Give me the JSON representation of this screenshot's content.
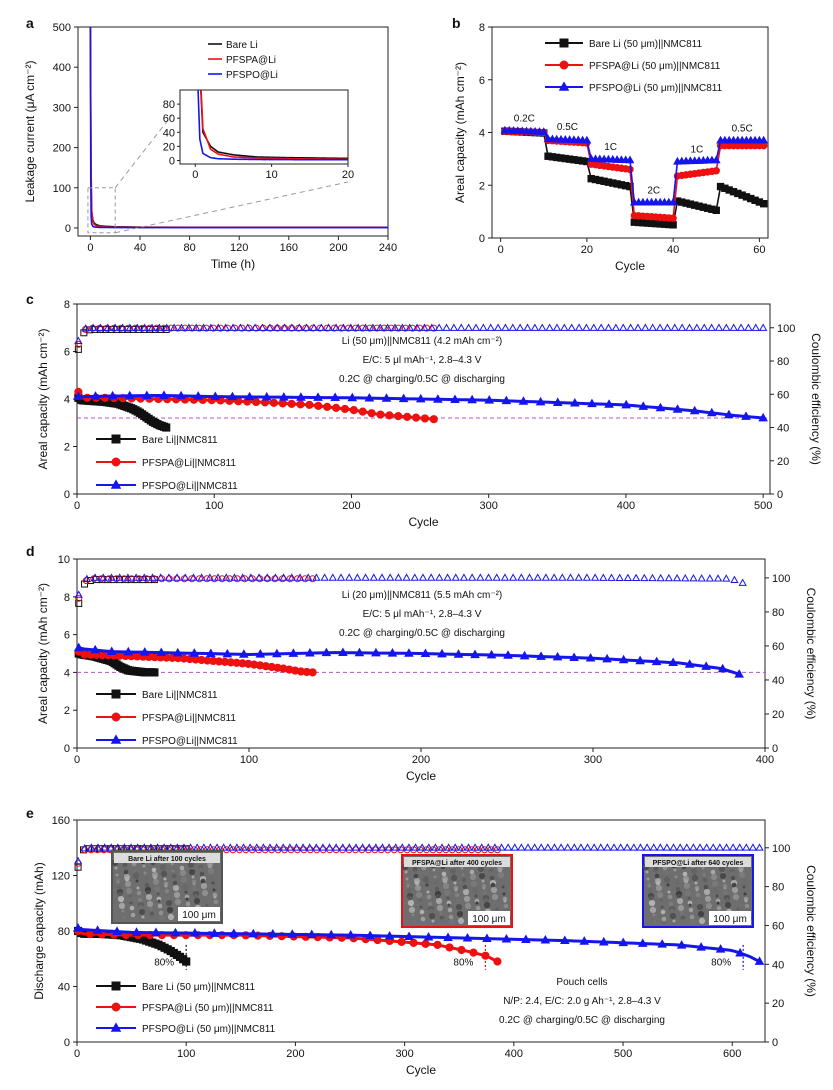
{
  "figure_title": "",
  "colors": {
    "bare": "#111111",
    "pfspa": "#ee1111",
    "pfspo": "#1515ee",
    "threshold": "#b455c8",
    "dashed_zoom": "#9a9a9a"
  },
  "chart_data": [
    {
      "panel": "a",
      "type": "line",
      "xlabel": "Time (h)",
      "ylabel": "Leakage current (μA cm⁻²)",
      "xlim": [
        -10,
        240
      ],
      "ylim": [
        -20,
        500
      ],
      "xticks": [
        0,
        40,
        80,
        120,
        160,
        200,
        240
      ],
      "yticks": [
        0,
        100,
        200,
        300,
        400,
        500
      ],
      "legend": [
        "Bare Li",
        "PFSPA@Li",
        "PFSPO@Li"
      ],
      "series": [
        {
          "name": "Bare Li",
          "x": [
            0,
            0.5,
            1,
            2,
            3,
            5,
            8,
            12,
            20,
            40,
            80,
            160,
            240
          ],
          "y": [
            500,
            150,
            40,
            20,
            12,
            8,
            5,
            4,
            3,
            2,
            1.8,
            1.5,
            1.5
          ]
        },
        {
          "name": "PFSPA@Li",
          "x": [
            0,
            0.5,
            1,
            2,
            3,
            5,
            8,
            12,
            20,
            40,
            80,
            160,
            240
          ],
          "y": [
            500,
            160,
            45,
            16,
            9,
            5,
            3.5,
            2.5,
            1.8,
            1.5,
            1.3,
            1.2,
            1.2
          ]
        },
        {
          "name": "PFSPO@Li",
          "x": [
            0,
            0.3,
            0.6,
            1,
            2,
            3,
            5,
            8,
            12,
            20,
            80,
            160,
            240
          ],
          "y": [
            500,
            120,
            30,
            10,
            4,
            2.5,
            1.8,
            1.4,
            1.2,
            1.1,
            1,
            1,
            1
          ]
        }
      ],
      "inset": {
        "xlim": [
          -2,
          20
        ],
        "ylim": [
          -5,
          100
        ],
        "xticks": [
          0,
          10,
          20
        ],
        "yticks": [
          0,
          20,
          40,
          60,
          80
        ]
      }
    },
    {
      "panel": "b",
      "type": "line",
      "xlabel": "Cycle",
      "ylabel": "Areal capacity (mAh cm⁻²)",
      "xlim": [
        -2,
        62
      ],
      "ylim": [
        0,
        8
      ],
      "xticks": [
        0,
        20,
        40,
        60
      ],
      "yticks": [
        0,
        2,
        4,
        6,
        8
      ],
      "legend": [
        "Bare Li (50 μm)||NMC811",
        "PFSPA@Li (50 μm)||NMC811",
        "PFSPO@Li (50 μm)||NMC811"
      ],
      "rate_labels": [
        "0.2C",
        "0.5C",
        "1C",
        "2C",
        "1C",
        "0.5C"
      ],
      "steps": [
        {
          "x0": 1,
          "x1": 10,
          "bare": [
            4.05,
            3.98
          ],
          "pfspa": [
            4.05,
            4.0
          ],
          "pfspo": [
            4.08,
            4.02
          ]
        },
        {
          "x0": 11,
          "x1": 20,
          "bare": [
            3.1,
            2.9
          ],
          "pfspa": [
            3.7,
            3.6
          ],
          "pfspo": [
            3.75,
            3.7
          ]
        },
        {
          "x0": 21,
          "x1": 30,
          "bare": [
            2.25,
            1.95
          ],
          "pfspa": [
            2.8,
            2.6
          ],
          "pfspo": [
            3.0,
            2.95
          ]
        },
        {
          "x0": 31,
          "x1": 40,
          "bare": [
            0.6,
            0.5
          ],
          "pfspa": [
            0.85,
            0.75
          ],
          "pfspo": [
            1.35,
            1.35
          ]
        },
        {
          "x0": 41,
          "x1": 50,
          "bare": [
            1.4,
            1.05
          ],
          "pfspa": [
            2.35,
            2.55
          ],
          "pfspo": [
            2.9,
            2.95
          ]
        },
        {
          "x0": 51,
          "x1": 61,
          "bare": [
            1.95,
            1.3
          ],
          "pfspa": [
            3.5,
            3.5
          ],
          "pfspo": [
            3.7,
            3.7
          ]
        }
      ]
    },
    {
      "panel": "c",
      "type": "line",
      "xlabel": "Cycle",
      "ylabel": "Areal capacity (mAh cm⁻²)",
      "y2label": "Coulombic efficiency (%)",
      "xlim": [
        0,
        505
      ],
      "ylim": [
        0,
        8
      ],
      "y2lim": [
        0,
        114.3
      ],
      "xticks": [
        0,
        100,
        200,
        300,
        400,
        500
      ],
      "yticks": [
        0,
        2,
        4,
        6,
        8
      ],
      "y2ticks": [
        0,
        20,
        40,
        60,
        80,
        100
      ],
      "annotations": [
        "Li (50 μm)||NMC811 (4.2 mAh cm⁻²)",
        "E/C: 5 μl mAh⁻¹, 2.8–4.3 V",
        "0.2C @ charging/0.5C @ discharging"
      ],
      "threshold": 3.2,
      "legend": [
        "Bare Li||NMC811",
        "PFSPA@Li||NMC811",
        "PFSPO@Li||NMC811"
      ],
      "series": [
        {
          "name": "Bare Li||NMC811",
          "x": [
            1,
            3,
            10,
            20,
            30,
            40,
            45,
            50,
            55,
            60,
            65
          ],
          "y": [
            4.05,
            3.95,
            3.92,
            3.88,
            3.8,
            3.6,
            3.45,
            3.25,
            3.05,
            2.9,
            2.8
          ]
        },
        {
          "name": "PFSPA@Li||NMC811",
          "x": [
            1,
            3,
            20,
            60,
            100,
            140,
            170,
            200,
            220,
            240,
            260
          ],
          "y": [
            4.3,
            4.05,
            4.05,
            4.0,
            3.95,
            3.85,
            3.75,
            3.55,
            3.35,
            3.25,
            3.15
          ]
        },
        {
          "name": "PFSPO@Li||NMC811",
          "x": [
            1,
            3,
            20,
            60,
            100,
            200,
            300,
            350,
            400,
            450,
            480,
            500
          ],
          "y": [
            4.1,
            4.1,
            4.12,
            4.15,
            4.1,
            4.05,
            3.95,
            3.85,
            3.75,
            3.5,
            3.3,
            3.2
          ]
        }
      ],
      "ce_series": [
        {
          "name": "Bare Li",
          "x": [
            1,
            3,
            6,
            10,
            30,
            65
          ],
          "y": [
            87,
            95,
            98,
            99,
            99,
            99
          ]
        },
        {
          "name": "PFSPA@Li",
          "x": [
            1,
            3,
            6,
            10,
            100,
            260
          ],
          "y": [
            90,
            96,
            99,
            99.7,
            99.8,
            99.8
          ]
        },
        {
          "name": "PFSPO@Li",
          "x": [
            1,
            3,
            6,
            10,
            200,
            500
          ],
          "y": [
            92,
            97,
            99.5,
            99.9,
            99.9,
            99.9
          ]
        }
      ]
    },
    {
      "panel": "d",
      "type": "line",
      "xlabel": "Cycle",
      "ylabel": "Areal capacity (mAh cm⁻²)",
      "y2label": "Coulombic efficiency (%)",
      "xlim": [
        0,
        400
      ],
      "ylim": [
        0,
        10
      ],
      "y2lim": [
        0,
        111.1
      ],
      "xticks": [
        0,
        100,
        200,
        300,
        400
      ],
      "yticks": [
        0,
        2,
        4,
        6,
        8,
        10
      ],
      "y2ticks": [
        0,
        20,
        40,
        60,
        80,
        100
      ],
      "annotations": [
        "Li (20 μm)||NMC811 (5.5 mAh cm⁻²)",
        "E/C: 5 μl mAh⁻¹, 2.8–4.3 V",
        "0.2C @ charging/0.5C @ discharging"
      ],
      "threshold": 4.0,
      "legend": [
        "Bare Li||NMC811",
        "PFSPA@Li||NMC811",
        "PFSPO@Li||NMC811"
      ],
      "series": [
        {
          "name": "Bare Li||NMC811",
          "x": [
            1,
            3,
            10,
            20,
            25,
            30,
            35,
            40,
            45
          ],
          "y": [
            5.0,
            4.95,
            4.85,
            4.6,
            4.3,
            4.1,
            4.05,
            4.0,
            4.0
          ]
        },
        {
          "name": "PFSPA@Li||NMC811",
          "x": [
            1,
            3,
            20,
            60,
            100,
            120,
            130,
            137
          ],
          "y": [
            5.1,
            4.95,
            4.9,
            4.75,
            4.45,
            4.2,
            4.05,
            4.0
          ]
        },
        {
          "name": "PFSPO@Li||NMC811",
          "x": [
            1,
            3,
            20,
            100,
            150,
            200,
            250,
            300,
            350,
            375,
            385
          ],
          "y": [
            5.3,
            5.25,
            5.1,
            4.95,
            5.05,
            5.0,
            4.9,
            4.75,
            4.5,
            4.2,
            3.9
          ]
        }
      ],
      "ce_series": [
        {
          "name": "Bare Li",
          "x": [
            1,
            3,
            6,
            10,
            45
          ],
          "y": [
            85,
            95,
            98,
            99,
            99
          ]
        },
        {
          "name": "PFSPA@Li",
          "x": [
            1,
            3,
            6,
            10,
            137
          ],
          "y": [
            88,
            96,
            99,
            99.5,
            99.5
          ]
        },
        {
          "name": "PFSPO@Li",
          "x": [
            1,
            3,
            6,
            10,
            300,
            380,
            387
          ],
          "y": [
            90,
            97,
            99.5,
            100,
            100,
            99.5,
            97
          ]
        }
      ]
    },
    {
      "panel": "e",
      "type": "line",
      "xlabel": "Cycle",
      "ylabel": "Discharge capacity (mAh)",
      "y2label": "Coulombic efficiency (%)",
      "xlim": [
        0,
        630
      ],
      "ylim": [
        0,
        160
      ],
      "y2lim": [
        0,
        114.3
      ],
      "xticks": [
        0,
        100,
        200,
        300,
        400,
        500,
        600
      ],
      "yticks": [
        0,
        40,
        80,
        120,
        160
      ],
      "y2ticks": [
        0,
        20,
        40,
        60,
        80,
        100
      ],
      "annotations": [
        "Pouch cells",
        "N/P: 2.4, E/C: 2.0 g Ah⁻¹, 2.8–4.3 V",
        "0.2C @ charging/0.5C @ discharging"
      ],
      "retention_labels": [
        {
          "label": "80%",
          "x": 100
        },
        {
          "label": "80%",
          "x": 374
        },
        {
          "label": "80%",
          "x": 610
        }
      ],
      "sem_images": [
        {
          "caption": "Bare Li after 100 cycles",
          "scale": "100 μm"
        },
        {
          "caption": "PFSPA@Li after 400 cycles",
          "scale": "100 μm"
        },
        {
          "caption": "PFSPO@Li after 640 cycles",
          "scale": "100 μm"
        }
      ],
      "legend": [
        "Bare Li (50 μm)||NMC811",
        "PFSPA@Li (50 μm)||NMC811",
        "PFSPO@Li (50 μm)||NMC811"
      ],
      "series": [
        {
          "name": "Bare Li (50 μm)||NMC811",
          "x": [
            1,
            5,
            20,
            40,
            60,
            75,
            85,
            95,
            100
          ],
          "y": [
            80,
            78,
            78,
            77,
            74,
            70,
            66,
            61,
            58
          ]
        },
        {
          "name": "PFSPA@Li (50 μm)||NMC811",
          "x": [
            1,
            5,
            50,
            150,
            250,
            300,
            330,
            360,
            375,
            385
          ],
          "y": [
            80,
            78,
            77,
            77,
            75,
            72,
            70,
            65,
            62,
            58
          ]
        },
        {
          "name": "PFSPO@Li (50 μm)||NMC811",
          "x": [
            1,
            5,
            50,
            150,
            250,
            350,
            450,
            550,
            600,
            615,
            625
          ],
          "y": [
            82,
            81,
            79,
            78,
            77,
            75,
            73,
            70,
            66,
            62,
            58
          ]
        }
      ],
      "ce_series": [
        {
          "name": "Bare Li",
          "x": [
            1,
            3,
            6,
            10,
            100
          ],
          "y": [
            90,
            95,
            99,
            99.5,
            99.5
          ]
        },
        {
          "name": "PFSPA@Li",
          "x": [
            1,
            3,
            6,
            10,
            385
          ],
          "y": [
            92,
            96,
            99,
            99,
            99
          ]
        },
        {
          "name": "PFSPO@Li",
          "x": [
            1,
            3,
            6,
            10,
            625
          ],
          "y": [
            93,
            97,
            99.5,
            100,
            100
          ]
        }
      ]
    }
  ]
}
